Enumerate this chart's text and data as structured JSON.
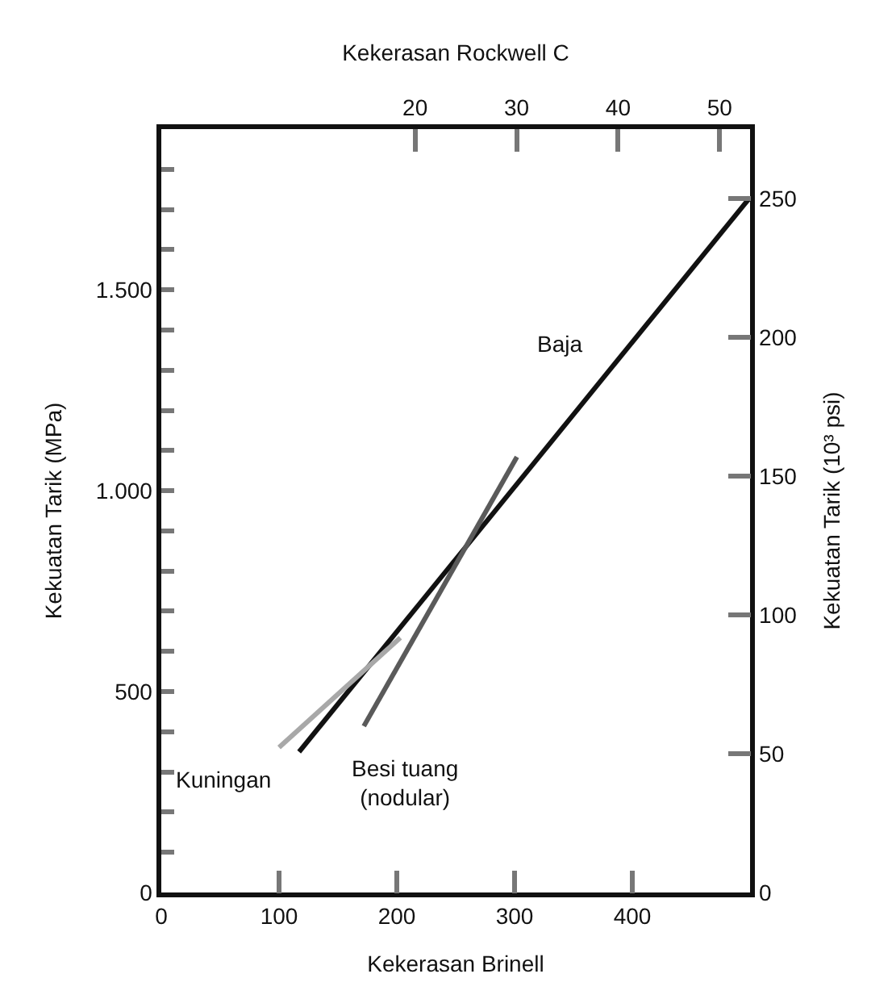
{
  "chart_data": {
    "type": "line",
    "xlabel": "Kekerasan Brinell",
    "ylabel": "Kekuatan Tarik (MPa)",
    "y2label": "Kekuatan Tarik (10³ psi)",
    "x2label": "Kekerasan Rockwell C",
    "series": [
      {
        "name": "Baja",
        "color": "#111111",
        "x": [
          117,
          500
        ],
        "values": [
          350,
          1730
        ]
      },
      {
        "name": "Kuningan",
        "color": "#a8a8a8",
        "x": [
          100,
          203
        ],
        "values": [
          361,
          634
        ]
      },
      {
        "name": "Besi tuang\n(nodular)",
        "color": "#5a5a5a",
        "x": [
          172,
          302
        ],
        "values": [
          414,
          1084
        ]
      }
    ],
    "xlim": [
      0,
      500
    ],
    "xticks": [
      0,
      100,
      200,
      300,
      400
    ],
    "x2lim": [
      -5,
      53
    ],
    "x2ticks": [
      20,
      30,
      40,
      50
    ],
    "ylim": [
      0,
      1900
    ],
    "yticks": [
      0,
      {
        "value": 100,
        "label": null
      },
      {
        "value": 200,
        "label": null
      },
      {
        "value": 300,
        "label": null
      },
      {
        "value": 400,
        "label": null
      },
      500,
      {
        "value": 600,
        "label": null
      },
      {
        "value": 700,
        "label": null
      },
      {
        "value": 800,
        "label": null
      },
      {
        "value": 900,
        "label": null
      },
      {
        "value": 1000,
        "label": "1.000"
      },
      {
        "value": 1100,
        "label": null
      },
      {
        "value": 1200,
        "label": null
      },
      {
        "value": 1300,
        "label": null
      },
      {
        "value": 1400,
        "label": null
      },
      {
        "value": 1500,
        "label": "1.500"
      },
      {
        "value": 1600,
        "label": null
      },
      {
        "value": 1700,
        "label": null
      },
      {
        "value": 1800,
        "label": null
      }
    ],
    "y2lim": [
      0,
      275
    ],
    "y2ticks": [
      0,
      50,
      100,
      150,
      200,
      250
    ],
    "grid": false,
    "legend": false,
    "marker": "none",
    "line_style": "solid"
  }
}
